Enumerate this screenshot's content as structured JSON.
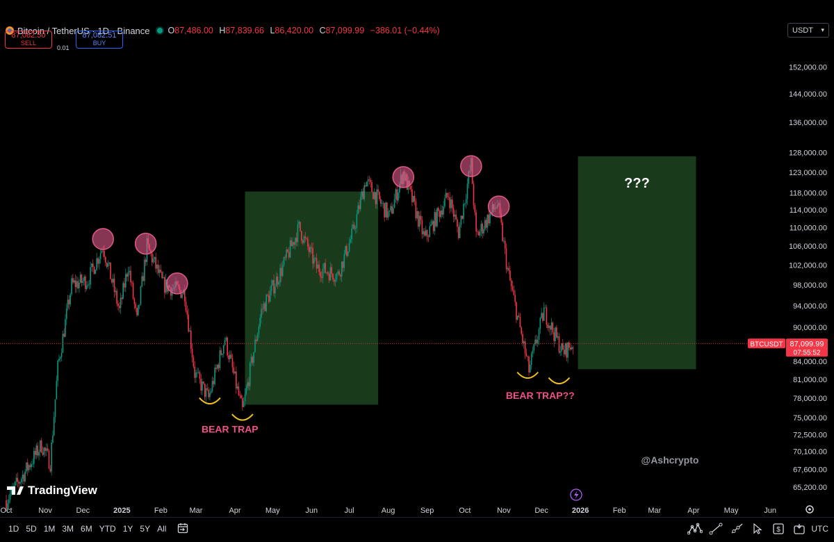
{
  "header": {
    "symbol": "Bitcoin / TetherUS · 1D · Binance",
    "ohlc": [
      {
        "k": "O",
        "v": "87,486.00"
      },
      {
        "k": "H",
        "v": "87,839.66"
      },
      {
        "k": "L",
        "v": "86,420.00"
      },
      {
        "k": "C",
        "v": "87,099.99"
      }
    ],
    "change": "−386.01 (−0.44%)"
  },
  "trade": {
    "sell_price": "87,082.50",
    "sell_label": "SELL",
    "spread": "0.01",
    "buy_price": "87,082.51",
    "buy_label": "BUY"
  },
  "currency": "USDT",
  "colors": {
    "up": "#089981",
    "down": "#f23645",
    "zone": "#1a3a1c",
    "circle": "#e05a8a",
    "trap": "#f0c11d",
    "trap_text": "#f0508a"
  },
  "chart_data": {
    "type": "candlestick",
    "symbol": "BTCUSDT",
    "y_axis": {
      "scale": "log",
      "range": [
        63500,
        160000
      ],
      "tick_labels": [
        "152,000.00",
        "144,000.00",
        "136,000.00",
        "128,000.00",
        "123,000.00",
        "118,000.00",
        "114,000.00",
        "110,000.00",
        "106,000.00",
        "102,000.00",
        "98,000.00",
        "94,000.00",
        "90,000.00",
        "84,000.00",
        "81,000.00",
        "78,000.00",
        "75,000.00",
        "72,500.00",
        "70,100.00",
        "67,600.00",
        "65,200.00"
      ],
      "tick_values": [
        152000,
        144000,
        136000,
        128000,
        123000,
        118000,
        114000,
        110000,
        106000,
        102000,
        98000,
        94000,
        90000,
        84000,
        81000,
        78000,
        75000,
        72500,
        70100,
        67600,
        65200
      ]
    },
    "x_axis": {
      "range": [
        "2024-09-26",
        "2026-06-12"
      ],
      "tick_labels": [
        "Oct",
        "Nov",
        "Dec",
        "2025",
        "Feb",
        "Mar",
        "Apr",
        "May",
        "Jun",
        "Jul",
        "Aug",
        "Sep",
        "Oct",
        "Nov",
        "Dec",
        "2026",
        "Feb",
        "Mar",
        "Apr",
        "May",
        "Jun"
      ],
      "tick_dates": [
        "2024-10-01",
        "2024-11-01",
        "2024-12-01",
        "2025-01-01",
        "2025-02-01",
        "2025-03-01",
        "2025-04-01",
        "2025-05-01",
        "2025-06-01",
        "2025-07-01",
        "2025-08-01",
        "2025-09-01",
        "2025-10-01",
        "2025-11-01",
        "2025-12-01",
        "2026-01-01",
        "2026-02-01",
        "2026-03-01",
        "2026-04-01",
        "2026-05-01",
        "2026-06-01"
      ]
    },
    "price_path": [
      [
        "2024-10-01",
        63500
      ],
      [
        "2024-10-15",
        67000
      ],
      [
        "2024-10-29",
        71000
      ],
      [
        "2024-11-05",
        68500
      ],
      [
        "2024-11-11",
        83000
      ],
      [
        "2024-11-22",
        98000
      ],
      [
        "2024-12-05",
        99000
      ],
      [
        "2024-12-17",
        106000
      ],
      [
        "2024-12-30",
        93000
      ],
      [
        "2025-01-06",
        102000
      ],
      [
        "2025-01-13",
        91000
      ],
      [
        "2025-01-21",
        106000
      ],
      [
        "2025-02-03",
        98000
      ],
      [
        "2025-02-20",
        96500
      ],
      [
        "2025-02-28",
        82000
      ],
      [
        "2025-03-11",
        78000
      ],
      [
        "2025-03-24",
        88000
      ],
      [
        "2025-04-07",
        76000
      ],
      [
        "2025-04-22",
        93000
      ],
      [
        "2025-05-08",
        101000
      ],
      [
        "2025-05-22",
        110000
      ],
      [
        "2025-06-05",
        101500
      ],
      [
        "2025-06-22",
        100000
      ],
      [
        "2025-07-04",
        109000
      ],
      [
        "2025-07-14",
        121000
      ],
      [
        "2025-08-02",
        112500
      ],
      [
        "2025-08-13",
        123000
      ],
      [
        "2025-08-30",
        107500
      ],
      [
        "2025-09-18",
        117500
      ],
      [
        "2025-09-26",
        109000
      ],
      [
        "2025-10-06",
        125000
      ],
      [
        "2025-10-10",
        108000
      ],
      [
        "2025-10-27",
        115500
      ],
      [
        "2025-11-04",
        101000
      ],
      [
        "2025-11-21",
        82500
      ],
      [
        "2025-12-03",
        93000
      ],
      [
        "2025-12-18",
        85500
      ],
      [
        "2025-12-26",
        87100
      ]
    ],
    "last_price": {
      "label": "BTCUSDT",
      "value": "87,099.99",
      "countdown": "07:55:52"
    },
    "zones": [
      {
        "from": "2025-04-09",
        "to": "2025-07-24",
        "y_low": 77000,
        "y_high": 118300
      },
      {
        "from": "2025-12-30",
        "to": "2026-04-03",
        "y_low": 82700,
        "y_high": 127000,
        "label": "???"
      }
    ],
    "top_circles": [
      {
        "date": "2024-12-17",
        "price": 107500
      },
      {
        "date": "2025-01-20",
        "price": 106500
      },
      {
        "date": "2025-02-14",
        "price": 98300
      },
      {
        "date": "2025-08-13",
        "price": 121800
      },
      {
        "date": "2025-10-06",
        "price": 124500
      },
      {
        "date": "2025-10-28",
        "price": 114800
      }
    ],
    "bottom_arcs": [
      {
        "date": "2025-03-12",
        "price": 77300
      },
      {
        "date": "2025-04-07",
        "price": 74800
      },
      {
        "date": "2025-11-20",
        "price": 81400
      },
      {
        "date": "2025-12-15",
        "price": 80500
      }
    ],
    "annotations": [
      {
        "text": "BEAR TRAP",
        "date": "2025-03-28",
        "price": 72800
      },
      {
        "text": "BEAR TRAP??",
        "date": "2025-11-30",
        "price": 77900
      }
    ],
    "watermark": "@Ashcrypto",
    "logo": "TradingView"
  },
  "timeframes": [
    "1D",
    "5D",
    "1M",
    "3M",
    "6M",
    "YTD",
    "1Y",
    "5Y",
    "All"
  ],
  "footer": {
    "utc": "UTC"
  }
}
